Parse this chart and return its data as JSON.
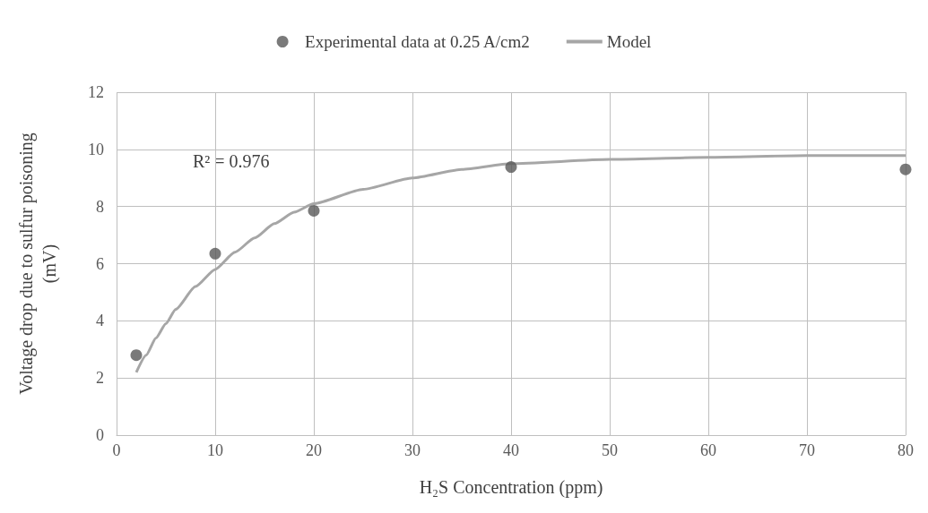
{
  "chart_data": {
    "type": "scatter",
    "xlabel": "H₂S Concentration (ppm)",
    "ylabel": "Voltage drop due to sulfur poisoning\n(mV)",
    "series": [
      {
        "name": "Experimental data at 0.25 A/cm2",
        "color": "#595959",
        "marker": "circle",
        "x": [
          2,
          10,
          20,
          40,
          80
        ],
        "values": [
          2.8,
          6.35,
          7.85,
          9.38,
          9.3
        ]
      },
      {
        "name": "Model",
        "type": "line",
        "color": "#a6a6a6",
        "marker": "none",
        "x": [
          2,
          3,
          4,
          5,
          6,
          8,
          10,
          12,
          14,
          16,
          18,
          20,
          25,
          30,
          35,
          40,
          50,
          60,
          70,
          80
        ],
        "values": [
          2.2,
          2.8,
          3.4,
          3.9,
          4.4,
          5.2,
          5.8,
          6.4,
          6.9,
          7.4,
          7.8,
          8.1,
          8.6,
          9.0,
          9.3,
          9.5,
          9.65,
          9.72,
          9.78,
          9.78
        ]
      }
    ],
    "annotations": [
      "R² = 0.976"
    ],
    "xlim": [
      0,
      80
    ],
    "xticks": [
      0,
      10,
      20,
      30,
      40,
      50,
      60,
      70,
      80
    ],
    "ylim": [
      0,
      12
    ],
    "yticks": [
      0,
      2,
      4,
      6,
      8,
      10,
      12
    ],
    "grid": true,
    "legend": "top"
  }
}
